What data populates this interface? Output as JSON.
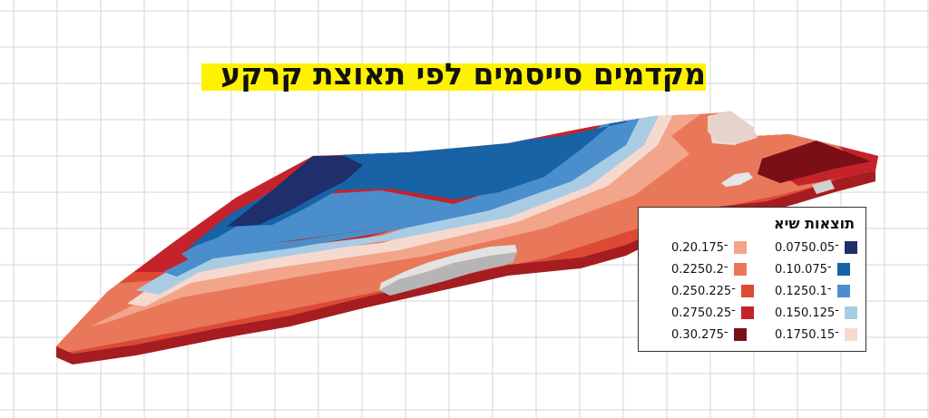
{
  "title": "מקדמים סייסמים לפי תאוצת קרקע",
  "legend": {
    "title": "תוצאות שיא",
    "right_column": [
      {
        "label": "0.075־0.05",
        "color": "#1e2f6b"
      },
      {
        "label": "0.1־0.075",
        "color": "#1763a6"
      },
      {
        "label": "0.125־0.1",
        "color": "#4a8fcb"
      },
      {
        "label": "0.15־0.125",
        "color": "#a9cce4"
      },
      {
        "label": "0.175־0.15",
        "color": "#f5d9cf"
      }
    ],
    "left_column": [
      {
        "label": "0.2־0.175",
        "color": "#f2a58a"
      },
      {
        "label": "0.225־0.2",
        "color": "#e9785a"
      },
      {
        "label": "0.25־0.225",
        "color": "#dc4a35"
      },
      {
        "label": "0.275־0.25",
        "color": "#c5232b"
      },
      {
        "label": "0.3־0.275",
        "color": "#7a0f17"
      }
    ]
  }
}
